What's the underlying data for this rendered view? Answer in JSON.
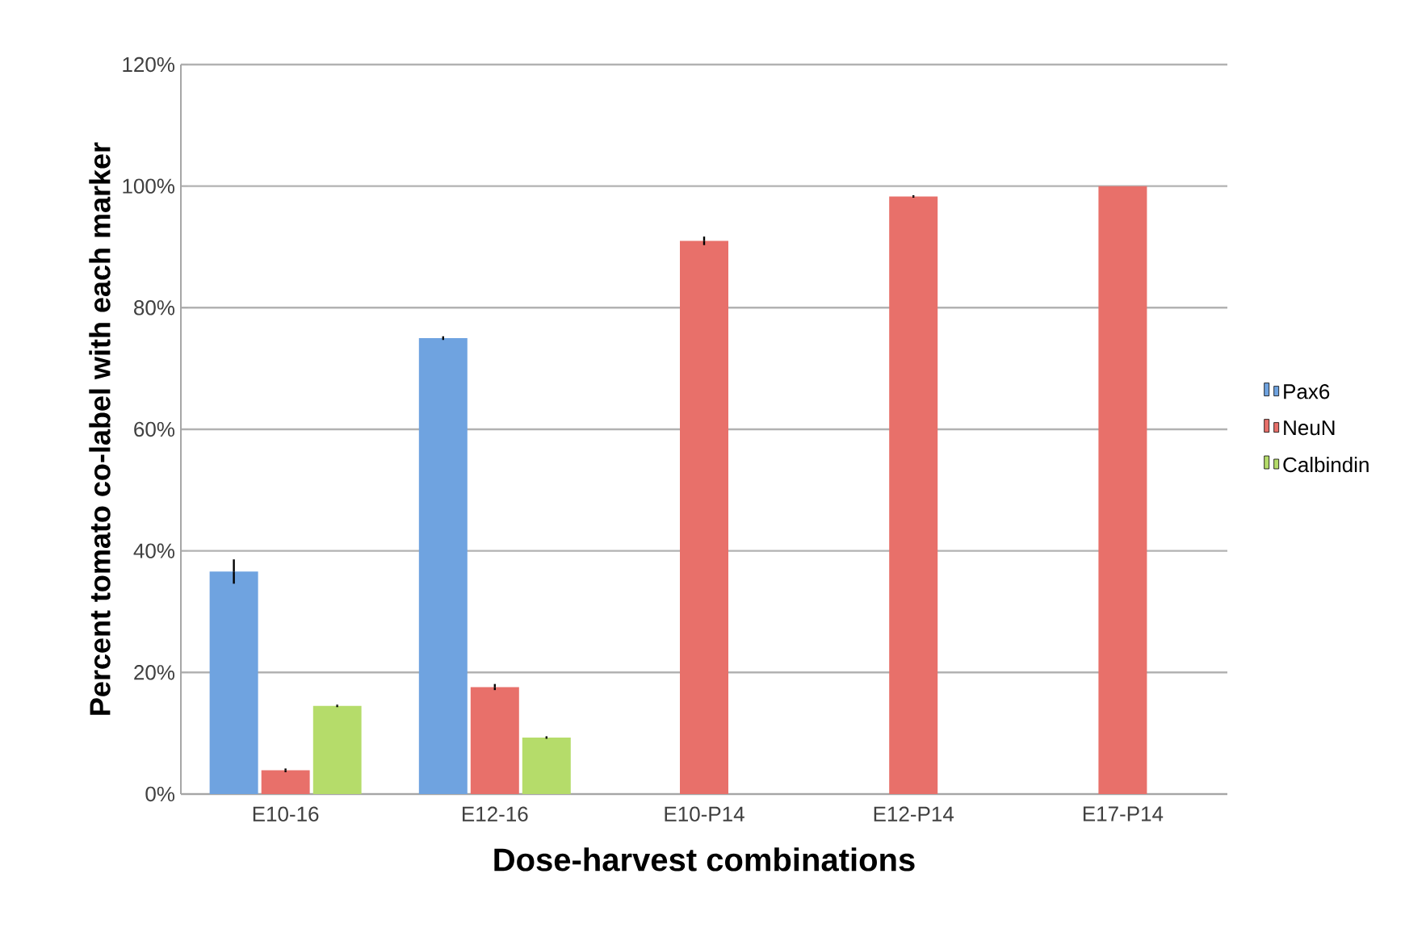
{
  "chart_data": {
    "type": "bar",
    "xlabel": "Dose-harvest combinations",
    "ylabel": "Percent tomato co-label with each marker",
    "categories": [
      "E10-16",
      "E12-16",
      "E10-P14",
      "E12-P14",
      "E17-P14"
    ],
    "series": [
      {
        "name": "Pax6",
        "color": "#6fa3e0",
        "values": [
          36.6,
          75.0,
          null,
          null,
          null
        ],
        "errors": [
          2,
          0.3,
          null,
          null,
          null
        ]
      },
      {
        "name": "NeuN",
        "color": "#e8706a",
        "values": [
          3.9,
          17.6,
          91.0,
          98.3,
          100
        ],
        "errors": [
          0.3,
          0.5,
          0.7,
          0.2,
          null
        ]
      },
      {
        "name": "Calbindin",
        "color": "#b5dc6a",
        "values": [
          14.5,
          9.3,
          null,
          null,
          null
        ],
        "errors": [
          0.2,
          0.2,
          null,
          null,
          null
        ]
      }
    ],
    "ylim": [
      0,
      120
    ],
    "yticks": [
      {
        "value": 0,
        "label": "0%"
      },
      {
        "value": 20,
        "label": "20%"
      },
      {
        "value": 40,
        "label": "40%"
      },
      {
        "value": 60,
        "label": "60%"
      },
      {
        "value": 80,
        "label": "80%"
      },
      {
        "value": 100,
        "label": "100%"
      },
      {
        "value": 120,
        "label": "120%"
      }
    ],
    "grid": "y",
    "legend": "right"
  }
}
